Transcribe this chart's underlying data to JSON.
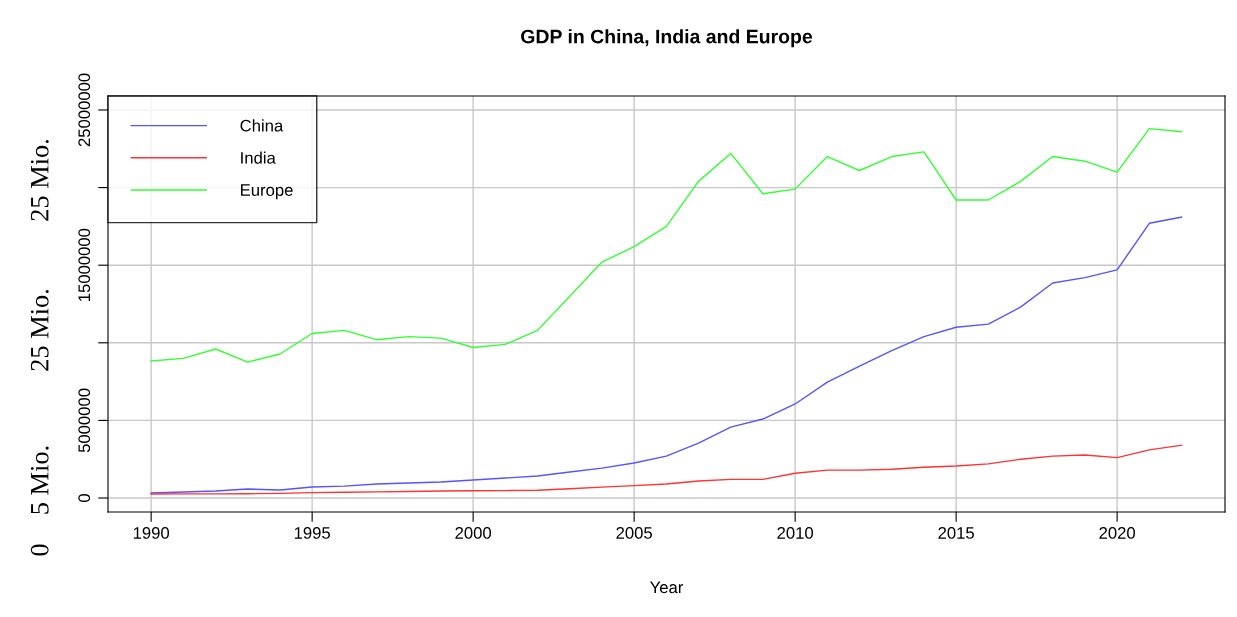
{
  "chart_data": {
    "type": "line",
    "title": "GDP in China, India and Europe",
    "xlabel": "Year",
    "x": [
      1990,
      1991,
      1992,
      1993,
      1994,
      1995,
      1996,
      1997,
      1998,
      1999,
      2000,
      2001,
      2002,
      2003,
      2004,
      2005,
      2006,
      2007,
      2008,
      2009,
      2010,
      2011,
      2012,
      2013,
      2014,
      2015,
      2016,
      2017,
      2018,
      2019,
      2020,
      2021,
      2022
    ],
    "series": [
      {
        "name": "China",
        "color": "#5555ff",
        "values": [
          320000,
          390000,
          450000,
          580000,
          520000,
          710000,
          770000,
          900000,
          970000,
          1030000,
          1160000,
          1290000,
          1420000,
          1680000,
          1930000,
          2260000,
          2700000,
          3540000,
          4570000,
          5090000,
          6060000,
          7470000,
          8500000,
          9500000,
          10400000,
          11000000,
          11200000,
          12300000,
          13850000,
          14200000,
          14700000,
          17700000,
          18100000
        ]
      },
      {
        "name": "India",
        "color": "#ff3333",
        "values": [
          260000,
          270000,
          270000,
          280000,
          300000,
          350000,
          370000,
          400000,
          420000,
          450000,
          470000,
          480000,
          500000,
          600000,
          700000,
          800000,
          900000,
          1100000,
          1200000,
          1200000,
          1600000,
          1800000,
          1800000,
          1850000,
          1980000,
          2060000,
          2200000,
          2500000,
          2700000,
          2770000,
          2600000,
          3100000,
          3400000
        ]
      },
      {
        "name": "Europe",
        "color": "#33ff33",
        "values": [
          8830000,
          9000000,
          9600000,
          8760000,
          9280000,
          10600000,
          10800000,
          10200000,
          10400000,
          10300000,
          9700000,
          9900000,
          10800000,
          13000000,
          15200000,
          16200000,
          17500000,
          20400000,
          22200000,
          19600000,
          19900000,
          22000000,
          21100000,
          22000000,
          22300000,
          19200000,
          19200000,
          20400000,
          22000000,
          21700000,
          21000000,
          23800000,
          23600000
        ]
      }
    ],
    "xlim": [
      1988.66,
      2023.35
    ],
    "xticks": [
      1990,
      1995,
      2000,
      2005,
      2010,
      2015,
      2020
    ],
    "ylim": [
      -900000,
      25900000
    ],
    "yticks": [
      0,
      5000000,
      {
        "value": 10000000,
        "label": null
      },
      15000000,
      {
        "value": 20000000,
        "label": null
      },
      25000000
    ],
    "annotations": [
      "0",
      "5 Mio.",
      "25 Mio.",
      "25 Mio."
    ],
    "grid": true,
    "legend": "top left",
    "line_style": "solid",
    "marker": "none"
  }
}
